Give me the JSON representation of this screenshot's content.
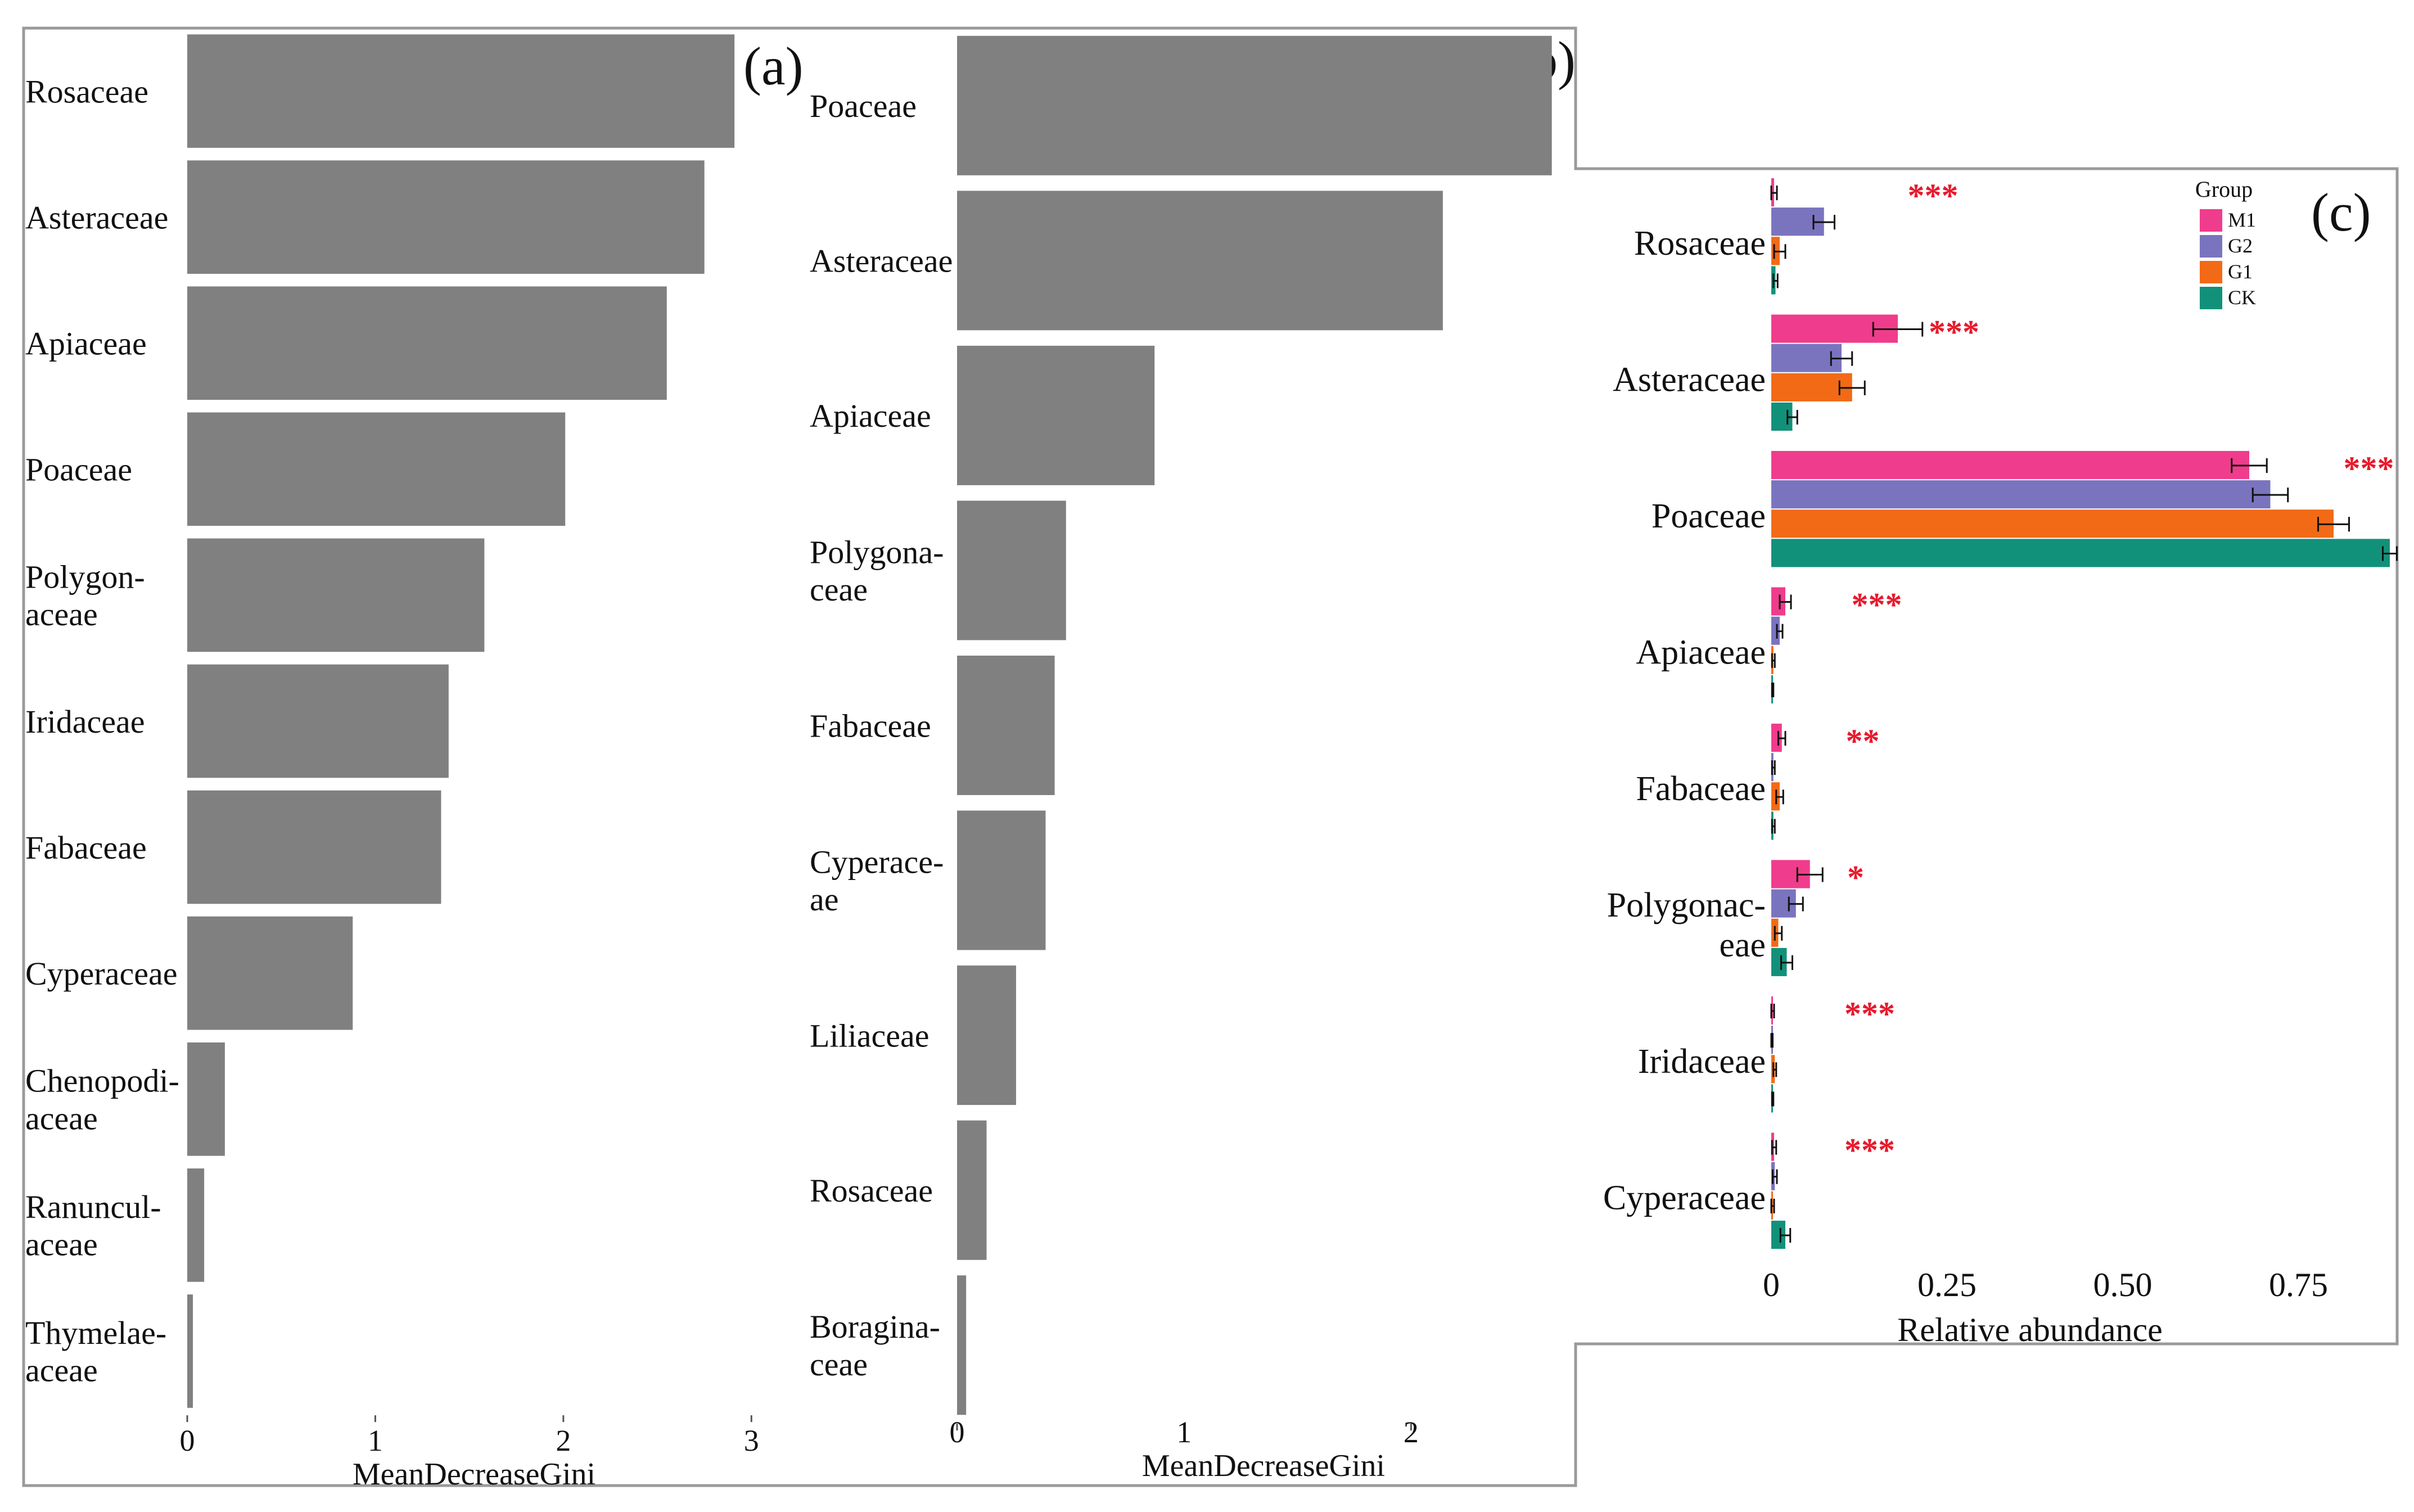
{
  "chart_data": [
    {
      "panel": "(a)",
      "type": "bar",
      "orientation": "horizontal",
      "categories": [
        "Rosaceae",
        "Asteraceae",
        "Apiaceae",
        "Poaceae",
        "Polygon-\naceae",
        "Iridaceae",
        "Fabaceae",
        "Cyperaceae",
        "Chenopodi-\naceae",
        "Ranuncul-\naceae",
        "Thymelae-\naceae"
      ],
      "values": [
        2.91,
        2.75,
        2.55,
        2.01,
        1.58,
        1.39,
        1.35,
        0.88,
        0.2,
        0.09,
        0.03
      ],
      "xlabel": "MeanDecreaseGini",
      "xticks": [
        0,
        1,
        2,
        3
      ],
      "xlim": [
        0,
        3.05
      ],
      "bar_color": "#808080",
      "grid": false
    },
    {
      "panel": "(b)",
      "type": "bar",
      "orientation": "horizontal",
      "categories": [
        "Poaceae",
        "Asteraceae",
        "Apiaceae",
        "Polygona-\nceae",
        "Fabaceae",
        "Cyperace-\nae",
        "Liliaceae",
        "Rosaceae",
        "Boragina-\nceae"
      ],
      "values": [
        2.62,
        2.14,
        0.87,
        0.48,
        0.43,
        0.39,
        0.26,
        0.13,
        0.04
      ],
      "xlabel": "MeanDecreaseGini",
      "xticks": [
        0,
        1,
        2
      ],
      "xlim": [
        0,
        2.7
      ],
      "bar_color": "#808080",
      "grid": false
    },
    {
      "panel": "(c)",
      "type": "bar",
      "orientation": "horizontal",
      "categories": [
        "Rosaceae",
        "Asteraceae",
        "Poaceae",
        "Apiaceae",
        "Fabaceae",
        "Polygonac-\neae",
        "Iridaceae",
        "Cyperaceae"
      ],
      "series": [
        {
          "name": "M1",
          "color": "#f03c8c",
          "values": [
            0.004,
            0.18,
            0.68,
            0.02,
            0.015,
            0.055,
            0.002,
            0.004
          ],
          "errors": [
            0.004,
            0.035,
            0.025,
            0.008,
            0.005,
            0.018,
            0.002,
            0.003
          ]
        },
        {
          "name": "G2",
          "color": "#7a74be",
          "values": [
            0.075,
            0.1,
            0.71,
            0.012,
            0.003,
            0.035,
            0.001,
            0.005
          ],
          "errors": [
            0.015,
            0.015,
            0.025,
            0.004,
            0.002,
            0.01,
            0.001,
            0.003
          ]
        },
        {
          "name": "G1",
          "color": "#f26a16",
          "values": [
            0.012,
            0.115,
            0.8,
            0.003,
            0.012,
            0.01,
            0.005,
            0.002
          ],
          "errors": [
            0.008,
            0.018,
            0.022,
            0.002,
            0.005,
            0.005,
            0.002,
            0.002
          ]
        },
        {
          "name": "CK",
          "color": "#12917a",
          "values": [
            0.006,
            0.03,
            0.88,
            0.002,
            0.003,
            0.022,
            0.002,
            0.02
          ],
          "errors": [
            0.003,
            0.007,
            0.01,
            0.001,
            0.002,
            0.008,
            0.001,
            0.007
          ]
        }
      ],
      "significance": [
        "***",
        "***",
        "***",
        "***",
        "**",
        "*",
        "***",
        "***"
      ],
      "significance_positions": [
        0.23,
        0.26,
        0.85,
        0.15,
        0.13,
        0.12,
        0.14,
        0.14
      ],
      "significance_color": "#e8192c",
      "xlabel": "Relative abundance",
      "xticks": [
        0,
        0.25,
        0.5,
        0.75
      ],
      "xtick_labels": [
        "0",
        "0.25",
        "0.50",
        "0.75"
      ],
      "xlim": [
        0,
        0.88
      ],
      "legend": {
        "title": "Group",
        "position": "top-right"
      },
      "grid": false
    }
  ]
}
